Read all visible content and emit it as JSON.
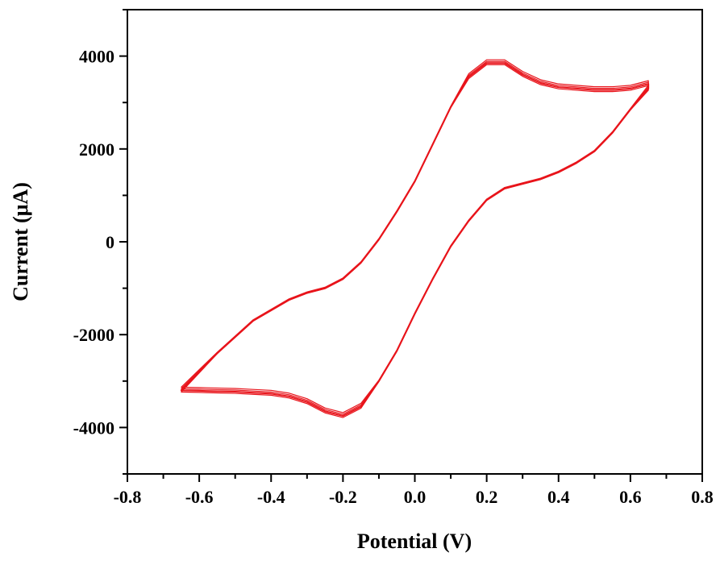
{
  "chart_data": {
    "type": "line",
    "title": "",
    "xlabel": "Potential (V)",
    "ylabel": "Current (μA)",
    "xlim": [
      -0.8,
      0.8
    ],
    "ylim": [
      -5000,
      5000
    ],
    "x_ticks": [
      -0.8,
      -0.6,
      -0.4,
      -0.2,
      0.0,
      0.2,
      0.4,
      0.6,
      0.8
    ],
    "x_tick_labels": [
      "-0.8",
      "-0.6",
      "-0.4",
      "-0.2",
      "0.0",
      "0.2",
      "0.4",
      "0.6",
      "0.8"
    ],
    "y_ticks": [
      -4000,
      -2000,
      0,
      2000,
      4000
    ],
    "y_tick_labels": [
      "-4000",
      "-2000",
      "0",
      "2000",
      "4000"
    ],
    "grid": false,
    "legend": "none",
    "series_color": "#e8141b",
    "series": [
      {
        "name": "",
        "x": [
          -0.65,
          -0.55,
          -0.45,
          -0.35,
          -0.3,
          -0.25,
          -0.2,
          -0.15,
          -0.1,
          -0.05,
          0.0,
          0.05,
          0.1,
          0.15,
          0.2,
          0.25,
          0.3,
          0.35,
          0.4,
          0.45,
          0.5,
          0.55,
          0.6,
          0.65,
          0.65,
          0.6,
          0.55,
          0.5,
          0.45,
          0.4,
          0.35,
          0.3,
          0.25,
          0.2,
          0.15,
          0.1,
          0.05,
          0.0,
          -0.05,
          -0.1,
          -0.15,
          -0.2,
          -0.25,
          -0.3,
          -0.35,
          -0.4,
          -0.45,
          -0.5,
          -0.55,
          -0.6,
          -0.65
        ],
        "y": [
          -3200,
          -2400,
          -1700,
          -1250,
          -1100,
          -1000,
          -800,
          -450,
          50,
          650,
          1300,
          2100,
          2900,
          3550,
          3850,
          3850,
          3600,
          3420,
          3330,
          3300,
          3270,
          3270,
          3300,
          3400,
          3300,
          2850,
          2350,
          1950,
          1700,
          1500,
          1350,
          1250,
          1150,
          900,
          450,
          -100,
          -800,
          -1550,
          -2350,
          -3000,
          -3550,
          -3750,
          -3650,
          -3450,
          -3330,
          -3270,
          -3250,
          -3230,
          -3220,
          -3210,
          -3200
        ]
      }
    ]
  }
}
